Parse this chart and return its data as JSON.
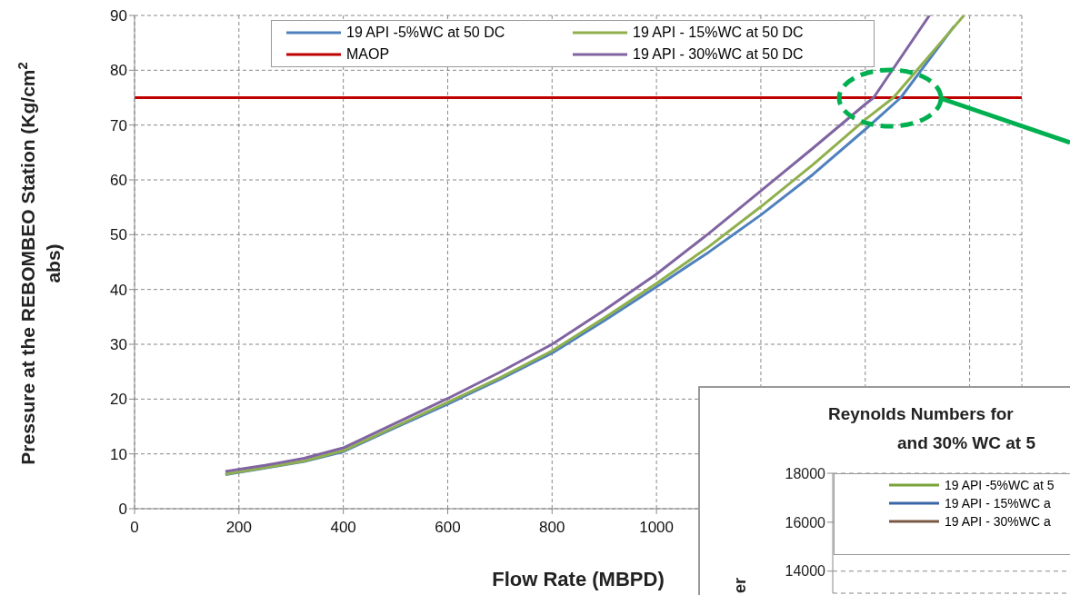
{
  "chart_data": [
    {
      "type": "line",
      "xlabel": "Flow Rate (MBPD)",
      "ylabel": "Pressure at the REBOMBEO Station (Kg/cm$^{2}$ abs)",
      "xlim": [
        0,
        1700
      ],
      "xticks": [
        0,
        200,
        400,
        600,
        800,
        1000,
        {
          "value": 1200,
          "label": null
        },
        {
          "value": 1400,
          "label": null
        },
        {
          "value": 1600,
          "label": null
        }
      ],
      "ylim": [
        0,
        90
      ],
      "yticks": [
        0,
        10,
        20,
        30,
        40,
        50,
        60,
        70,
        80,
        90
      ],
      "grid": true,
      "legend": "top",
      "marker": "none",
      "line_style": "solid",
      "series": [
        {
          "name": "19 API -5%WC at 50  DC",
          "color": "#4f81bd",
          "x": [
            174,
            250,
            325,
            400,
            500,
            600,
            700,
            800,
            900,
            1000,
            1100,
            1200,
            1300,
            1400,
            1468,
            1570
          ],
          "values": [
            6.2,
            7.4,
            8.6,
            10.4,
            14.8,
            19.1,
            23.6,
            28.4,
            34.3,
            40.5,
            46.8,
            53.6,
            61.0,
            69.2,
            75,
            88
          ]
        },
        {
          "name": "19 API - 15%WC at 50 DC",
          "color": "#8fb04c",
          "x": [
            174,
            250,
            325,
            400,
            500,
            600,
            700,
            800,
            900,
            1000,
            1100,
            1200,
            1300,
            1400,
            1454,
            1589
          ],
          "values": [
            6.3,
            7.5,
            8.7,
            10.6,
            15.0,
            19.4,
            23.9,
            28.8,
            34.8,
            41.1,
            47.8,
            55.1,
            62.8,
            71.0,
            75,
            90
          ]
        },
        {
          "name": "19 API - 30%WC at 50 DC",
          "color": "#8064a2",
          "x": [
            174,
            250,
            325,
            400,
            500,
            600,
            700,
            800,
            900,
            1000,
            1100,
            1200,
            1300,
            1400,
            1416,
            1523
          ],
          "values": [
            6.8,
            7.9,
            9.2,
            11.1,
            15.6,
            20.1,
            24.9,
            30.0,
            36.2,
            42.8,
            50.2,
            58.0,
            65.8,
            73.8,
            75,
            90
          ]
        }
      ],
      "ref_lines": [
        {
          "axis": "y",
          "value": 75,
          "label": "MAOP",
          "color": "#c00000"
        }
      ]
    },
    {
      "type": "line",
      "title": "Reynolds Numbers for\nand 30% WC at 5",
      "ylabel": "er",
      "ylim": [
        13100,
        18000
      ],
      "yticks": [
        14000,
        16000,
        18000
      ],
      "grid": "y",
      "legend": "top",
      "series": [
        {
          "name": "19 API -5%WC at 5",
          "color": "#77a33a"
        },
        {
          "name": "19 API - 15%WC a",
          "color": "#3a66a8"
        },
        {
          "name": "19 API - 30%WC a",
          "color": "#7a5a45"
        }
      ]
    }
  ]
}
